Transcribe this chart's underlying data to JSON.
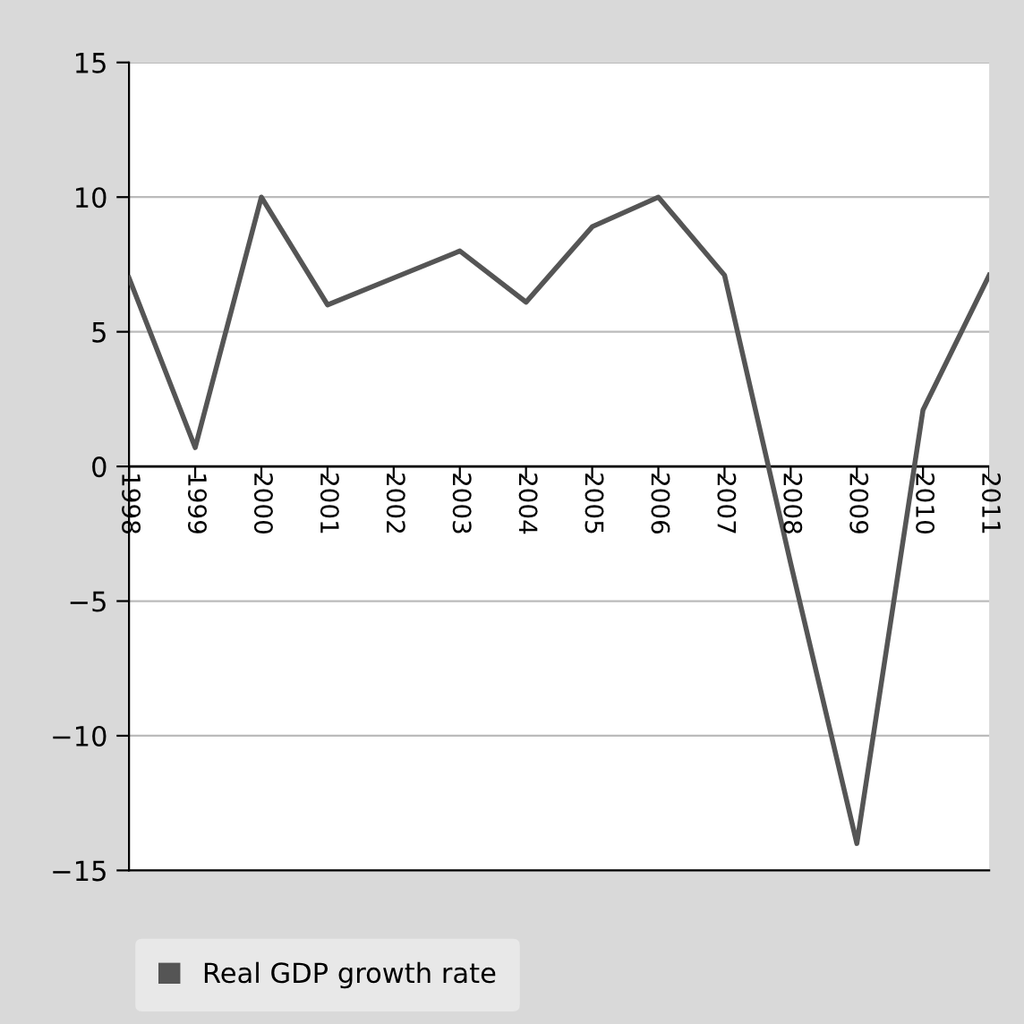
{
  "chart_data": {
    "type": "line",
    "categories": [
      "1998",
      "1999",
      "2000",
      "2001",
      "2002",
      "2003",
      "2004",
      "2005",
      "2006",
      "2007",
      "2008",
      "2009",
      "2010",
      "2011"
    ],
    "series": [
      {
        "name": "Real GDP growth rate",
        "color": "#555555",
        "values": [
          7.0,
          0.7,
          10.0,
          6.0,
          7.0,
          8.0,
          6.1,
          8.9,
          10.0,
          7.1,
          -3.6,
          -14.0,
          2.1,
          7.1
        ]
      }
    ],
    "ylim": [
      -15,
      15
    ],
    "yticks": [
      {
        "value": -15,
        "label": "−15"
      },
      {
        "value": -10,
        "label": "−10"
      },
      {
        "value": -5,
        "label": "−5"
      },
      0,
      5,
      10,
      15
    ],
    "grid": "y",
    "legend": "bottom",
    "marker": "none",
    "line_style": "solid"
  }
}
